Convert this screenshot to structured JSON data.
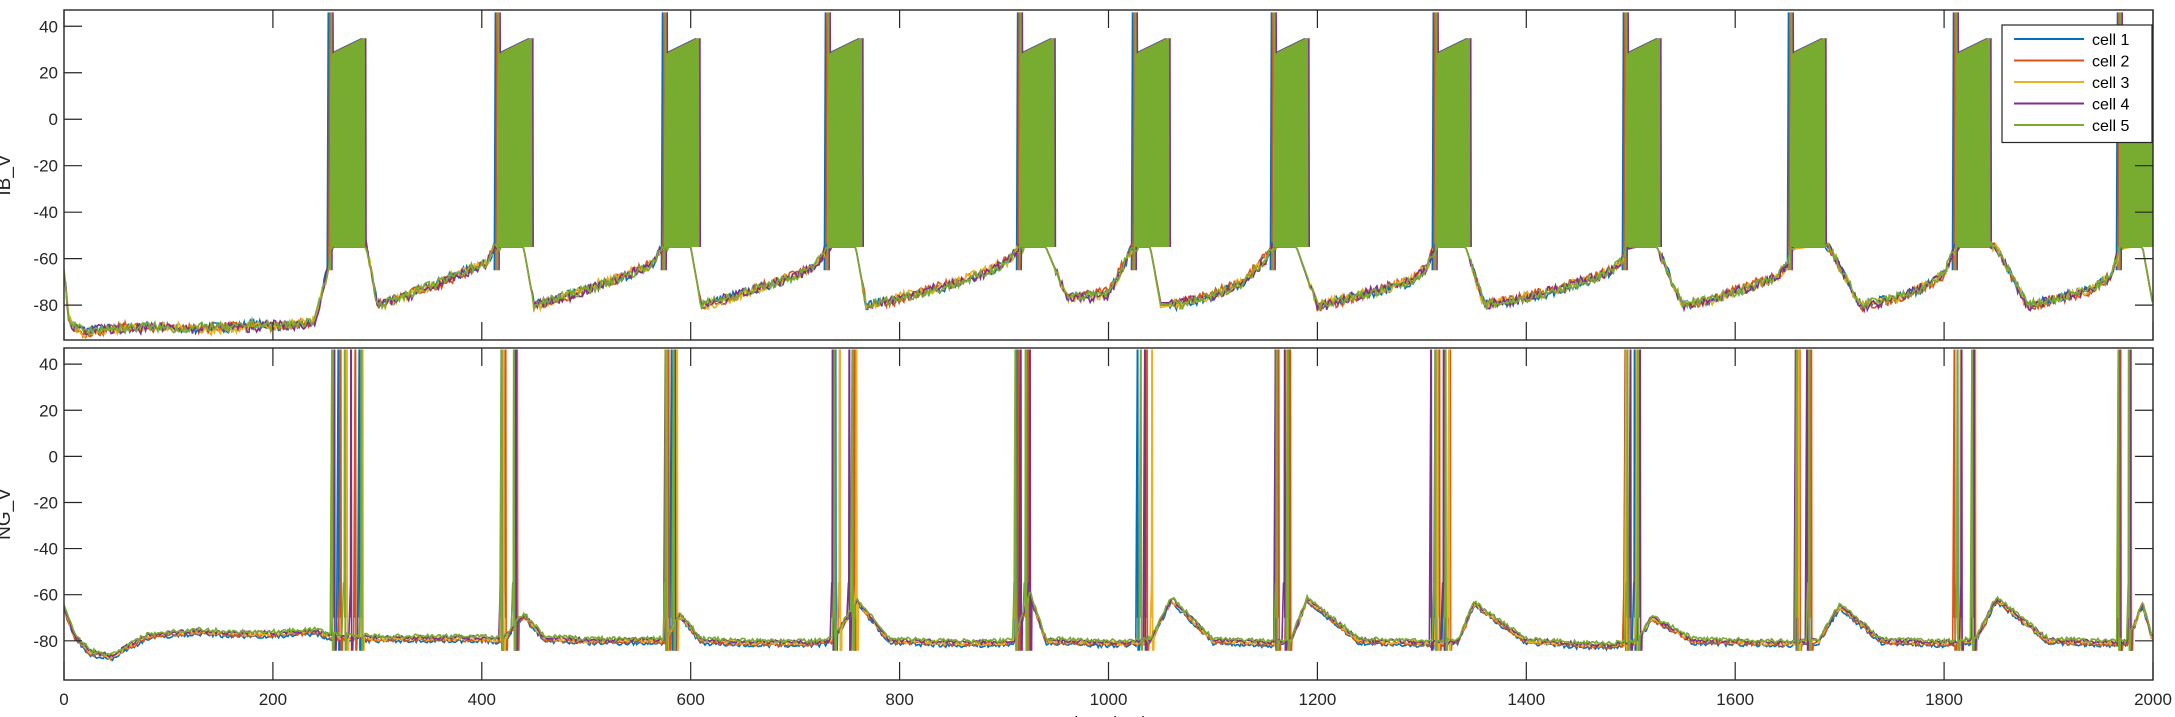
{
  "chart_data": [
    {
      "type": "line",
      "ylabel": "IB_V",
      "xlim": [
        0,
        2000
      ],
      "ylim": [
        -95,
        47
      ],
      "yticks": [
        -80,
        -60,
        -40,
        -20,
        0,
        20,
        40
      ],
      "xticks": [
        0,
        200,
        400,
        600,
        800,
        1000,
        1200,
        1400,
        1600,
        1800,
        2000
      ],
      "x_tick_labels_shown": false,
      "grid": false,
      "legend": "top-right",
      "x": [
        0,
        5,
        10,
        20,
        40,
        60,
        80,
        100,
        120,
        140,
        160,
        180,
        200,
        220,
        240,
        252,
        256,
        270,
        284,
        290,
        300,
        330,
        360,
        390,
        405,
        412,
        416,
        430,
        440,
        450,
        480,
        510,
        540,
        565,
        572,
        575,
        590,
        600,
        610,
        640,
        670,
        700,
        720,
        728,
        731,
        745,
        758,
        768,
        800,
        830,
        860,
        890,
        905,
        912,
        915,
        928,
        940,
        960,
        980,
        1000,
        1018,
        1022,
        1030,
        1040,
        1050,
        1070,
        1100,
        1130,
        1150,
        1155,
        1158,
        1170,
        1180,
        1200,
        1230,
        1260,
        1290,
        1305,
        1310,
        1313,
        1330,
        1342,
        1360,
        1390,
        1420,
        1450,
        1480,
        1492,
        1496,
        1505,
        1515,
        1525,
        1550,
        1580,
        1610,
        1640,
        1650,
        1654,
        1670,
        1682,
        1690,
        1720,
        1750,
        1780,
        1800,
        1808,
        1811,
        1825,
        1835,
        1850,
        1880,
        1910,
        1940,
        1960,
        1965,
        1968,
        1980,
        1990,
        2000
      ],
      "series": [
        {
          "name": "cell 1",
          "color": "#0072BD",
          "values": [
            -66,
            -86,
            -89,
            -91,
            -90,
            -90,
            -89,
            -90,
            -91,
            -89,
            -90,
            -88,
            -89,
            -89,
            -88,
            -65,
            -55,
            -55,
            -55,
            -55,
            -80,
            -75,
            -70,
            -64,
            -62,
            -55,
            -55,
            -55,
            -55,
            -80,
            -76,
            -72,
            -67,
            -62,
            -55,
            -55,
            -55,
            -55,
            -80,
            -76,
            -72,
            -68,
            -62,
            -58,
            -55,
            -55,
            -55,
            -80,
            -77,
            -74,
            -70,
            -65,
            -60,
            -56,
            -55,
            -55,
            -55,
            -76,
            -76,
            -75,
            -60,
            -55,
            -55,
            -55,
            -80,
            -80,
            -76,
            -70,
            -60,
            -56,
            -55,
            -55,
            -55,
            -80,
            -77,
            -74,
            -70,
            -64,
            -58,
            -55,
            -55,
            -55,
            -80,
            -78,
            -75,
            -71,
            -66,
            -60,
            -55,
            -55,
            -55,
            -55,
            -80,
            -77,
            -73,
            -68,
            -62,
            -55,
            -55,
            -55,
            -55,
            -80,
            -77,
            -73,
            -66,
            -58,
            -55,
            -55,
            -55,
            -55,
            -80,
            -77,
            -73,
            -68,
            -60,
            -55,
            -55,
            -55,
            -80
          ]
        },
        {
          "name": "cell 2",
          "color": "#D95319",
          "values": [
            -66,
            -87,
            -90,
            -92,
            -91,
            -89,
            -90,
            -89,
            -90,
            -90,
            -89,
            -89,
            -90,
            -88,
            -87,
            -66,
            -55,
            -55,
            -55,
            -55,
            -80,
            -75,
            -71,
            -65,
            -61,
            -55,
            -55,
            -55,
            -55,
            -80,
            -77,
            -72,
            -67,
            -61,
            -55,
            -55,
            -55,
            -55,
            -80,
            -77,
            -71,
            -67,
            -62,
            -57,
            -55,
            -55,
            -55,
            -80,
            -78,
            -73,
            -69,
            -64,
            -60,
            -56,
            -55,
            -55,
            -55,
            -77,
            -75,
            -74,
            -58,
            -55,
            -55,
            -55,
            -80,
            -79,
            -75,
            -69,
            -59,
            -55,
            -55,
            -55,
            -55,
            -81,
            -78,
            -73,
            -69,
            -63,
            -57,
            -55,
            -55,
            -55,
            -79,
            -77,
            -74,
            -70,
            -65,
            -61,
            -56,
            -55,
            -55,
            -55,
            -81,
            -77,
            -72,
            -67,
            -62,
            -55,
            -55,
            -55,
            -55,
            -81,
            -78,
            -73,
            -67,
            -59,
            -55,
            -55,
            -55,
            -55,
            -81,
            -78,
            -74,
            -67,
            -59,
            -55,
            -55,
            -55,
            -80
          ]
        },
        {
          "name": "cell 3",
          "color": "#EDB120",
          "values": [
            -66,
            -86,
            -89,
            -92,
            -91,
            -90,
            -89,
            -90,
            -89,
            -91,
            -90,
            -89,
            -89,
            -88,
            -87,
            -67,
            -55,
            -55,
            -55,
            -55,
            -81,
            -76,
            -70,
            -64,
            -62,
            -56,
            -55,
            -55,
            -55,
            -81,
            -76,
            -71,
            -66,
            -62,
            -56,
            -55,
            -55,
            -55,
            -81,
            -77,
            -72,
            -67,
            -63,
            -58,
            -55,
            -55,
            -55,
            -81,
            -76,
            -74,
            -69,
            -64,
            -61,
            -56,
            -55,
            -55,
            -55,
            -77,
            -77,
            -75,
            -61,
            -56,
            -55,
            -55,
            -81,
            -79,
            -77,
            -69,
            -61,
            -56,
            -55,
            -55,
            -55,
            -80,
            -76,
            -74,
            -69,
            -63,
            -58,
            -55,
            -55,
            -55,
            -81,
            -77,
            -75,
            -70,
            -66,
            -61,
            -56,
            -55,
            -55,
            -55,
            -80,
            -78,
            -73,
            -68,
            -63,
            -56,
            -55,
            -55,
            -55,
            -80,
            -78,
            -72,
            -66,
            -59,
            -55,
            -55,
            -55,
            -55,
            -80,
            -77,
            -73,
            -67,
            -61,
            -56,
            -55,
            -55,
            -79
          ]
        },
        {
          "name": "cell 4",
          "color": "#7E2F8E",
          "values": [
            -66,
            -87,
            -90,
            -91,
            -90,
            -91,
            -90,
            -89,
            -90,
            -90,
            -89,
            -90,
            -88,
            -89,
            -88,
            -66,
            -55,
            -55,
            -55,
            -55,
            -80,
            -76,
            -71,
            -65,
            -62,
            -55,
            -55,
            -55,
            -55,
            -80,
            -77,
            -72,
            -67,
            -62,
            -55,
            -55,
            -55,
            -55,
            -80,
            -76,
            -72,
            -68,
            -63,
            -57,
            -55,
            -55,
            -55,
            -80,
            -77,
            -73,
            -70,
            -65,
            -60,
            -56,
            -55,
            -55,
            -55,
            -76,
            -77,
            -76,
            -60,
            -55,
            -55,
            -55,
            -79,
            -79,
            -76,
            -70,
            -61,
            -56,
            -55,
            -55,
            -55,
            -81,
            -77,
            -73,
            -70,
            -64,
            -58,
            -55,
            -55,
            -55,
            -80,
            -78,
            -74,
            -70,
            -66,
            -61,
            -56,
            -55,
            -55,
            -55,
            -80,
            -77,
            -73,
            -68,
            -62,
            -55,
            -55,
            -55,
            -55,
            -81,
            -78,
            -72,
            -67,
            -58,
            -55,
            -55,
            -55,
            -55,
            -81,
            -77,
            -73,
            -68,
            -60,
            -55,
            -55,
            -55,
            -80
          ]
        },
        {
          "name": "cell 5",
          "color": "#77AC30",
          "values": [
            -66,
            -86,
            -89,
            -91,
            -90,
            -90,
            -89,
            -90,
            -90,
            -89,
            -90,
            -88,
            -89,
            -88,
            -87,
            -66,
            -55,
            -55,
            -55,
            -55,
            -80,
            -75,
            -70,
            -64,
            -62,
            -55,
            -55,
            -55,
            -55,
            -80,
            -76,
            -72,
            -67,
            -62,
            -55,
            -55,
            -55,
            -55,
            -80,
            -76,
            -72,
            -68,
            -62,
            -58,
            -55,
            -55,
            -55,
            -80,
            -77,
            -74,
            -70,
            -65,
            -60,
            -56,
            -55,
            -55,
            -55,
            -76,
            -76,
            -75,
            -60,
            -55,
            -55,
            -55,
            -80,
            -80,
            -76,
            -70,
            -60,
            -56,
            -55,
            -55,
            -55,
            -80,
            -77,
            -74,
            -70,
            -64,
            -58,
            -55,
            -55,
            -55,
            -80,
            -78,
            -75,
            -71,
            -66,
            -60,
            -55,
            -55,
            -55,
            -55,
            -80,
            -77,
            -73,
            -68,
            -62,
            -55,
            -55,
            -55,
            -55,
            -80,
            -77,
            -73,
            -66,
            -58,
            -55,
            -55,
            -55,
            -55,
            -80,
            -77,
            -73,
            -68,
            -60,
            -55,
            -55,
            -55,
            -80
          ]
        }
      ]
    },
    {
      "type": "line",
      "ylabel": "NG_V",
      "xlabel": "time (ms)",
      "xlim": [
        0,
        2000
      ],
      "ylim": [
        -97,
        47
      ],
      "yticks": [
        -80,
        -60,
        -40,
        -20,
        0,
        20,
        40
      ],
      "xticks": [
        0,
        200,
        400,
        600,
        800,
        1000,
        1200,
        1400,
        1600,
        1800,
        2000
      ],
      "grid": false,
      "baseline": {
        "x": [
          0,
          10,
          25,
          45,
          60,
          80,
          100,
          130,
          160,
          200,
          240,
          255,
          300,
          400,
          420,
          440,
          460,
          500,
          560,
          575,
          590,
          610,
          660,
          720,
          735,
          760,
          790,
          850,
          900,
          910,
          925,
          940,
          990,
          1025,
          1040,
          1060,
          1100,
          1150,
          1160,
          1175,
          1190,
          1240,
          1300,
          1320,
          1335,
          1350,
          1400,
          1460,
          1480,
          1505,
          1520,
          1560,
          1640,
          1655,
          1680,
          1700,
          1740,
          1790,
          1805,
          1830,
          1850,
          1900,
          1960,
          1975,
          1990,
          2000
        ],
        "values": [
          -66,
          -78,
          -85,
          -87,
          -83,
          -78,
          -77,
          -76,
          -77,
          -77,
          -76,
          -78,
          -79,
          -79,
          -80,
          -69,
          -79,
          -80,
          -80,
          -80,
          -69,
          -80,
          -81,
          -81,
          -80,
          -63,
          -80,
          -81,
          -81,
          -80,
          -60,
          -80,
          -81,
          -81,
          -80,
          -62,
          -80,
          -81,
          -81,
          -80,
          -62,
          -80,
          -81,
          -81,
          -80,
          -64,
          -80,
          -82,
          -82,
          -81,
          -70,
          -80,
          -81,
          -81,
          -80,
          -65,
          -80,
          -81,
          -81,
          -80,
          -62,
          -80,
          -81,
          -81,
          -64,
          -80
        ]
      },
      "spikes": [
        {
          "cell": "cell 1",
          "times": [
            262,
            282,
            418,
            430,
            576,
            581,
            738,
            756,
            911,
            920,
            1027,
            1160,
            1172,
            1312,
            1321,
            1494,
            1503,
            1659,
            1670,
            1812,
            1827,
            1968,
            1977
          ]
        },
        {
          "cell": "cell 2",
          "times": [
            264,
            278,
            422,
            433,
            578,
            585,
            742,
            756,
            913,
            922,
            1036,
            1162,
            1173,
            1316,
            1326,
            1494,
            1505,
            1661,
            1672,
            1809,
            1827,
            1968,
            1978
          ]
        },
        {
          "cell": "cell 3",
          "times": [
            256,
            270,
            285,
            420,
            432,
            576,
            586,
            742,
            758,
            910,
            920,
            1041,
            1160,
            1170,
            1314,
            1325,
            1495,
            1505,
            1660,
            1670,
            1815,
            1829,
            1966,
            1976
          ]
        },
        {
          "cell": "cell 4",
          "times": [
            258,
            274,
            418,
            432,
            575,
            584,
            735,
            751,
            915,
            924,
            1034,
            1159,
            1168,
            1308,
            1320,
            1499,
            1508,
            1657,
            1668,
            1816,
            1828,
            1967,
            1977
          ]
        },
        {
          "cell": "cell 5",
          "times": [
            256,
            268,
            284,
            418,
            430,
            575,
            583,
            737,
            754,
            910,
            920,
            1030,
            1160,
            1171,
            1312,
            1322,
            1496,
            1506,
            1658,
            1670,
            1812,
            1826,
            1966,
            1976
          ]
        }
      ]
    }
  ]
}
